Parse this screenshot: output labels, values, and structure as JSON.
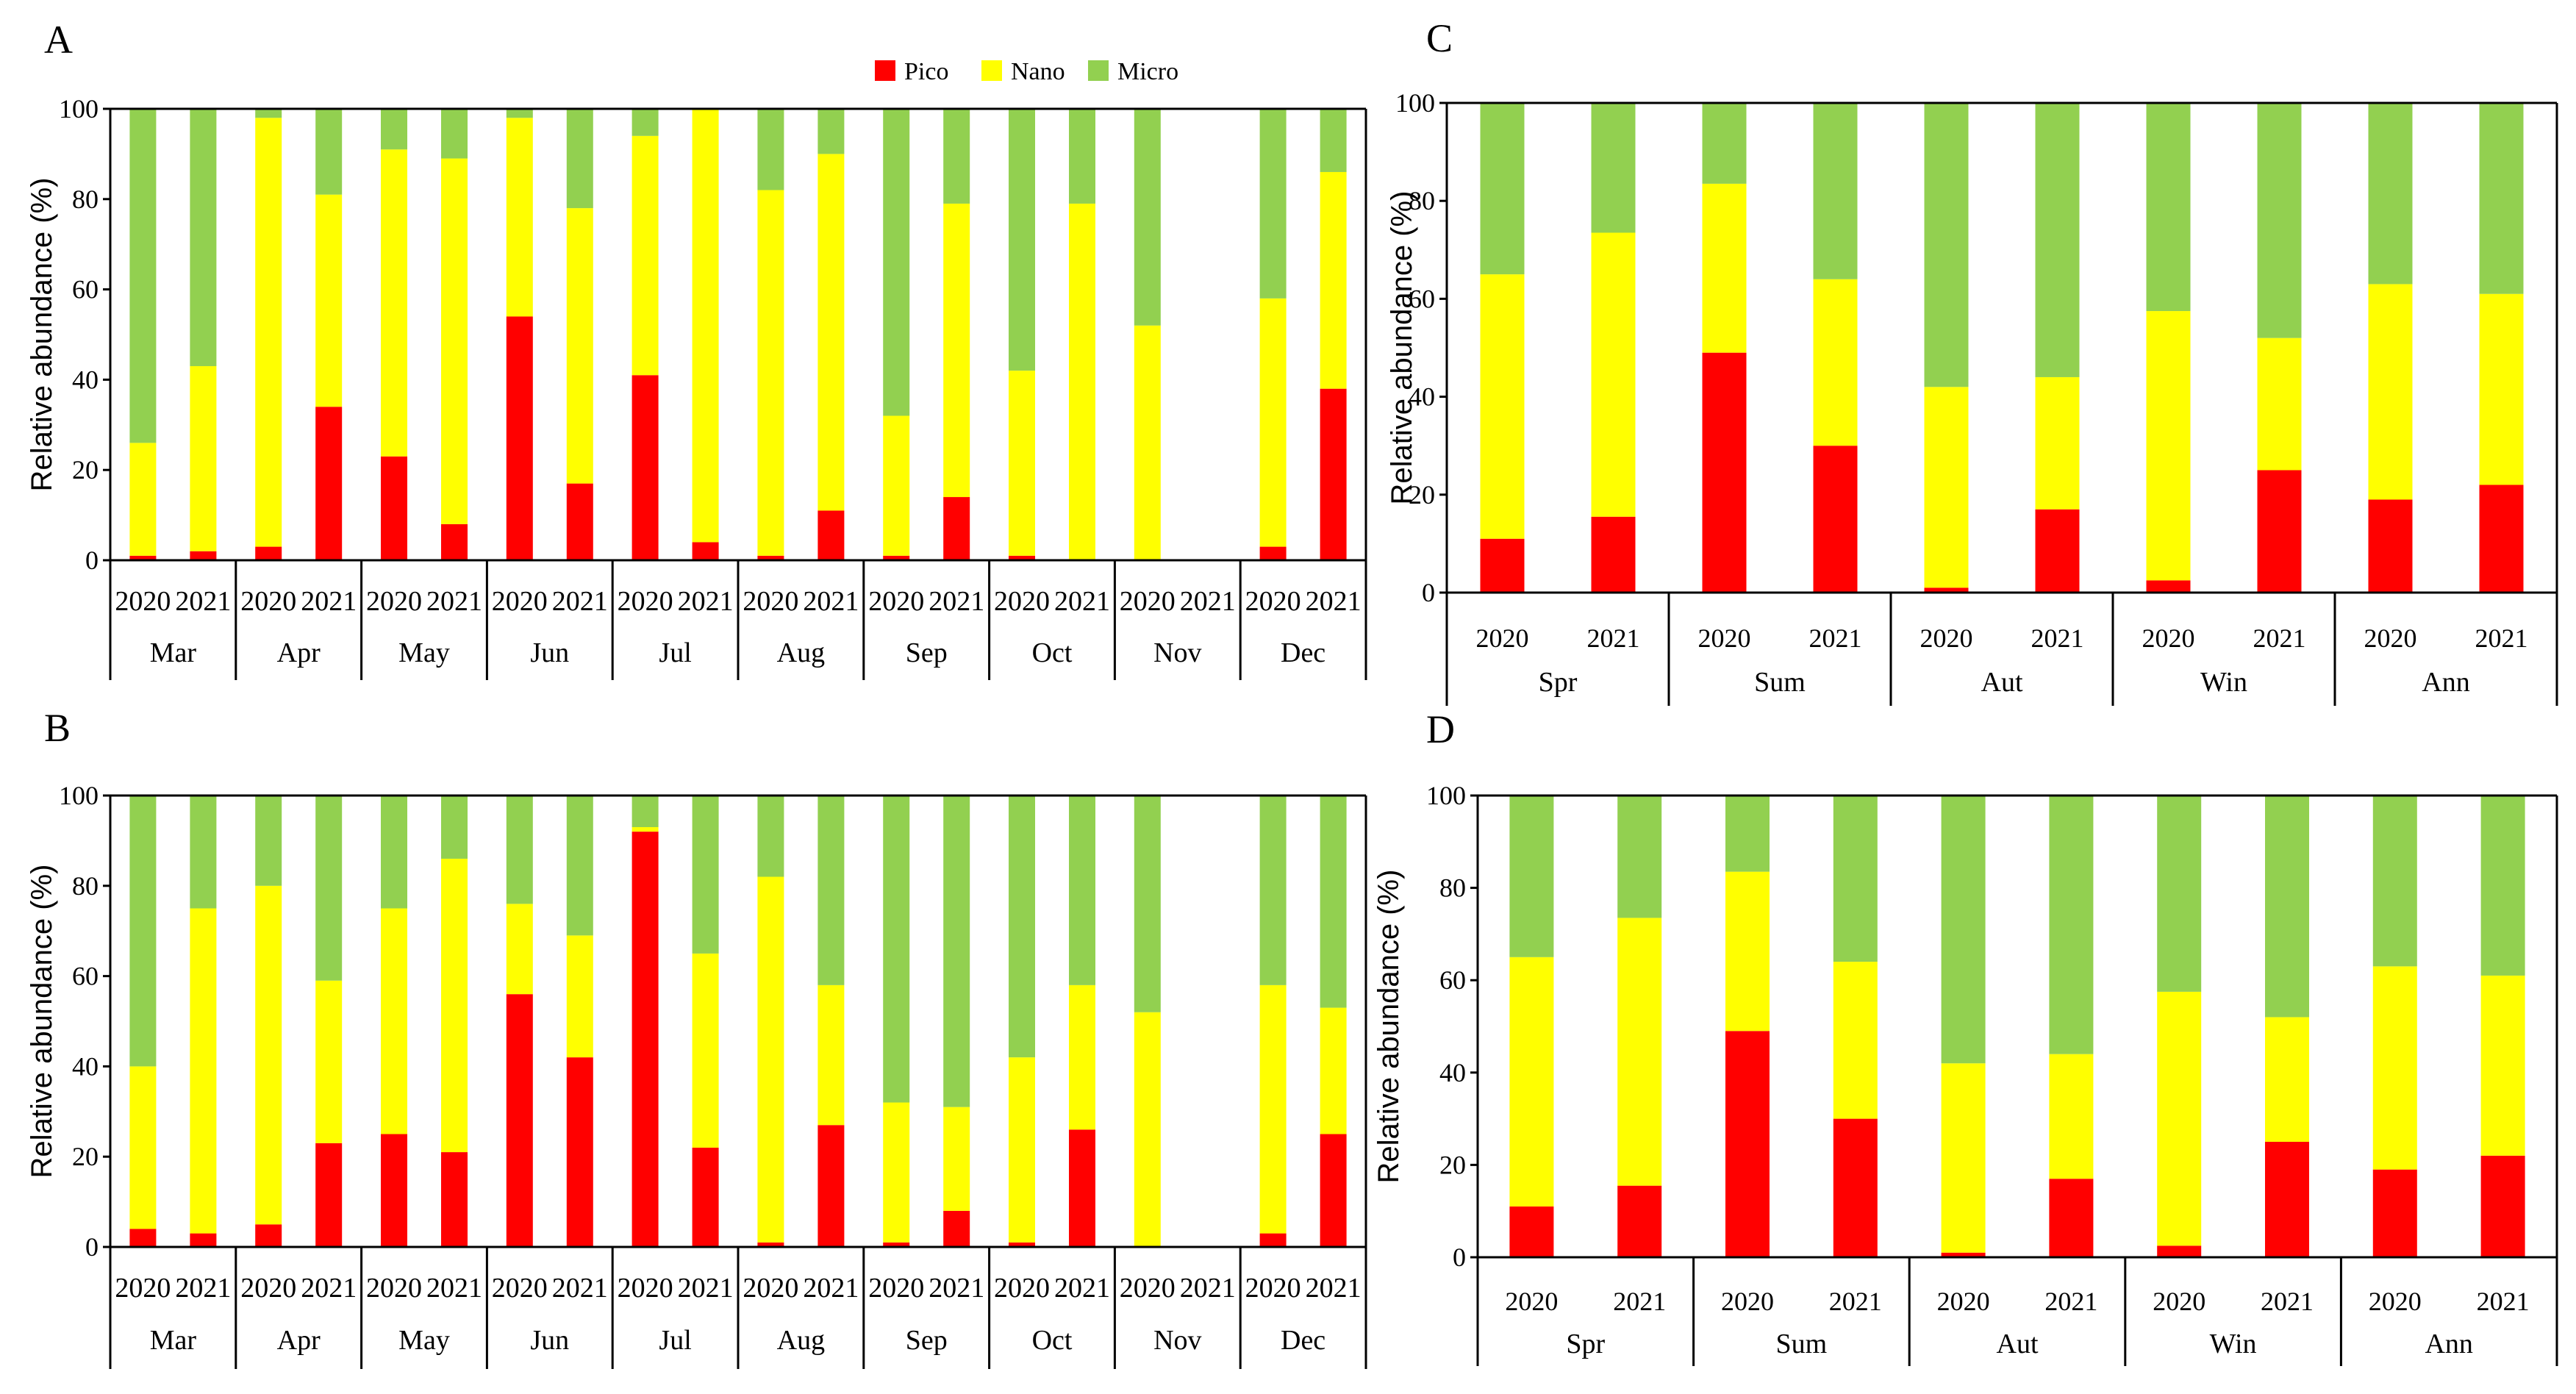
{
  "legend": [
    {
      "name": "Pico",
      "color": "#ff0000"
    },
    {
      "name": "Nano",
      "color": "#ffff00"
    },
    {
      "name": "Micro",
      "color": "#92d050"
    }
  ],
  "chart_data": [
    {
      "panel": "A",
      "type": "bar",
      "stacked": true,
      "ylabel": "Relative abundance (%)",
      "ylim": [
        0,
        100
      ],
      "yticks": [
        0,
        20,
        40,
        60,
        80,
        100
      ],
      "groups": [
        "Mar",
        "Apr",
        "May",
        "Jun",
        "Jul",
        "Aug",
        "Sep",
        "Oct",
        "Nov",
        "Dec"
      ],
      "subcategories": [
        "2020",
        "2021"
      ],
      "series": [
        {
          "name": "Pico",
          "values": [
            [
              1,
              2
            ],
            [
              3,
              34
            ],
            [
              23,
              8
            ],
            [
              54,
              17
            ],
            [
              41,
              4
            ],
            [
              1,
              11
            ],
            [
              1,
              14
            ],
            [
              1,
              0
            ],
            [
              0,
              null
            ],
            [
              3,
              38
            ]
          ]
        },
        {
          "name": "Nano",
          "values": [
            [
              25,
              41
            ],
            [
              95,
              47
            ],
            [
              68,
              81
            ],
            [
              44,
              61
            ],
            [
              53,
              96
            ],
            [
              81,
              79
            ],
            [
              31,
              65
            ],
            [
              41,
              79
            ],
            [
              52,
              null
            ],
            [
              55,
              48
            ]
          ]
        },
        {
          "name": "Micro",
          "values": [
            [
              74,
              57
            ],
            [
              2,
              19
            ],
            [
              9,
              11
            ],
            [
              2,
              22
            ],
            [
              6,
              0
            ],
            [
              18,
              10
            ],
            [
              68,
              21
            ],
            [
              58,
              21
            ],
            [
              48,
              null
            ],
            [
              42,
              14
            ]
          ]
        }
      ]
    },
    {
      "panel": "B",
      "type": "bar",
      "stacked": true,
      "ylabel": "Relative abundance (%)",
      "ylim": [
        0,
        100
      ],
      "yticks": [
        0,
        20,
        40,
        60,
        80,
        100
      ],
      "groups": [
        "Mar",
        "Apr",
        "May",
        "Jun",
        "Jul",
        "Aug",
        "Sep",
        "Oct",
        "Nov",
        "Dec"
      ],
      "subcategories": [
        "2020",
        "2021"
      ],
      "series": [
        {
          "name": "Pico",
          "values": [
            [
              4,
              3
            ],
            [
              5,
              23
            ],
            [
              25,
              21
            ],
            [
              56,
              42
            ],
            [
              92,
              22
            ],
            [
              1,
              27
            ],
            [
              1,
              8
            ],
            [
              1,
              26
            ],
            [
              0,
              null
            ],
            [
              3,
              25
            ]
          ]
        },
        {
          "name": "Nano",
          "values": [
            [
              36,
              72
            ],
            [
              75,
              36
            ],
            [
              50,
              65
            ],
            [
              20,
              27
            ],
            [
              1,
              43
            ],
            [
              81,
              31
            ],
            [
              31,
              23
            ],
            [
              41,
              32
            ],
            [
              52,
              null
            ],
            [
              55,
              28
            ]
          ]
        },
        {
          "name": "Micro",
          "values": [
            [
              60,
              25
            ],
            [
              20,
              41
            ],
            [
              25,
              14
            ],
            [
              24,
              31
            ],
            [
              7,
              35
            ],
            [
              18,
              42
            ],
            [
              68,
              69
            ],
            [
              58,
              42
            ],
            [
              48,
              null
            ],
            [
              42,
              47
            ]
          ]
        }
      ]
    },
    {
      "panel": "C",
      "type": "bar",
      "stacked": true,
      "ylabel": "Relative abundance (%)",
      "ylim": [
        0,
        100
      ],
      "yticks": [
        0,
        20,
        40,
        60,
        80,
        100
      ],
      "groups": [
        "Spr",
        "Sum",
        "Aut",
        "Win",
        "Ann"
      ],
      "subcategories": [
        "2020",
        "2021"
      ],
      "series": [
        {
          "name": "Pico",
          "values": [
            [
              11,
              15.5
            ],
            [
              49,
              30
            ],
            [
              1,
              17
            ],
            [
              2.5,
              25
            ],
            [
              19,
              22
            ]
          ]
        },
        {
          "name": "Nano",
          "values": [
            [
              54,
              58
            ],
            [
              34.5,
              34
            ],
            [
              41,
              27
            ],
            [
              55,
              27
            ],
            [
              44,
              39
            ]
          ]
        },
        {
          "name": "Micro",
          "values": [
            [
              35,
              26.5
            ],
            [
              16.5,
              36
            ],
            [
              58,
              56
            ],
            [
              42.5,
              48
            ],
            [
              37,
              39
            ]
          ]
        }
      ]
    },
    {
      "panel": "D",
      "type": "bar",
      "stacked": true,
      "ylabel": "Relative abundance (%)",
      "ylim": [
        0,
        100
      ],
      "yticks": [
        0,
        20,
        40,
        60,
        80,
        100
      ],
      "groups": [
        "Spr",
        "Sum",
        "Aut",
        "Win",
        "Ann"
      ],
      "subcategories": [
        "2020",
        "2021"
      ],
      "series": [
        {
          "name": "Pico",
          "values": [
            [
              11,
              15.5
            ],
            [
              49,
              30
            ],
            [
              1,
              17
            ],
            [
              2.5,
              25
            ],
            [
              19,
              22
            ]
          ]
        },
        {
          "name": "Nano",
          "values": [
            [
              54,
              58
            ],
            [
              34.5,
              34
            ],
            [
              41,
              27
            ],
            [
              55,
              27
            ],
            [
              44,
              39
            ]
          ]
        },
        {
          "name": "Micro",
          "values": [
            [
              35,
              26.5
            ],
            [
              16.5,
              36
            ],
            [
              58,
              56
            ],
            [
              42.5,
              48
            ],
            [
              37,
              39
            ]
          ]
        }
      ]
    }
  ]
}
